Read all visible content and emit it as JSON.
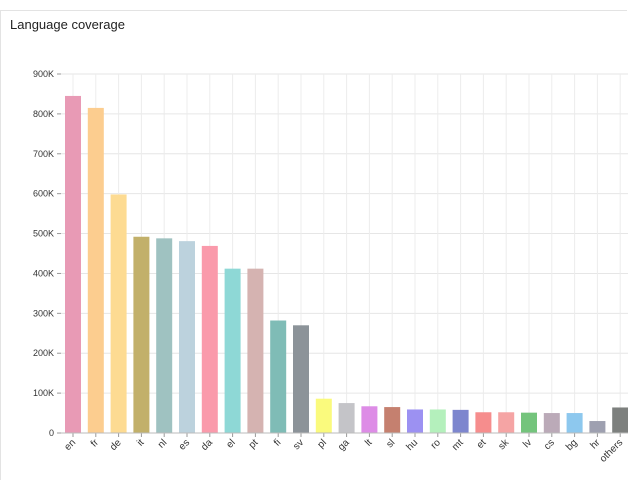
{
  "panel": {
    "title": "Language coverage"
  },
  "chart_data": {
    "type": "bar",
    "title": "Language coverage",
    "xlabel": "",
    "ylabel": "",
    "ylim": [
      0,
      900000
    ],
    "yticks": [
      {
        "value": 0,
        "label": "0"
      },
      {
        "value": 100000,
        "label": "100K"
      },
      {
        "value": 200000,
        "label": "200K"
      },
      {
        "value": 300000,
        "label": "300K"
      },
      {
        "value": 400000,
        "label": "400K"
      },
      {
        "value": 500000,
        "label": "500K"
      },
      {
        "value": 600000,
        "label": "600K"
      },
      {
        "value": 700000,
        "label": "700K"
      },
      {
        "value": 800000,
        "label": "800K"
      },
      {
        "value": 900000,
        "label": "900K"
      }
    ],
    "grid": true,
    "categories": [
      "en",
      "fr",
      "de",
      "it",
      "nl",
      "es",
      "da",
      "el",
      "pt",
      "fi",
      "sv",
      "pl",
      "ga",
      "lt",
      "sl",
      "hu",
      "ro",
      "mt",
      "et",
      "sk",
      "lv",
      "cs",
      "bg",
      "hr",
      "others"
    ],
    "values": [
      845000,
      815000,
      598000,
      492000,
      488000,
      481000,
      469000,
      412000,
      412000,
      282000,
      270000,
      86000,
      75000,
      67000,
      65000,
      59000,
      59000,
      58000,
      52000,
      52000,
      51000,
      50000,
      50000,
      30000,
      64000
    ],
    "colors": [
      "#e89ab5",
      "#fccd8f",
      "#fddb92",
      "#c2b06a",
      "#9fc2c1",
      "#bcd2dd",
      "#fa9aab",
      "#8ed8d6",
      "#d5b3b1",
      "#7fbcb6",
      "#8c9399",
      "#fafa7d",
      "#c4c4c8",
      "#dd8ce6",
      "#c5806f",
      "#9c91f2",
      "#b4f0bc",
      "#7d86ce",
      "#f68d8d",
      "#f5a4a4",
      "#74c47c",
      "#bbaab8",
      "#8dc8ee",
      "#9ea0b0",
      "#7d807e"
    ]
  }
}
